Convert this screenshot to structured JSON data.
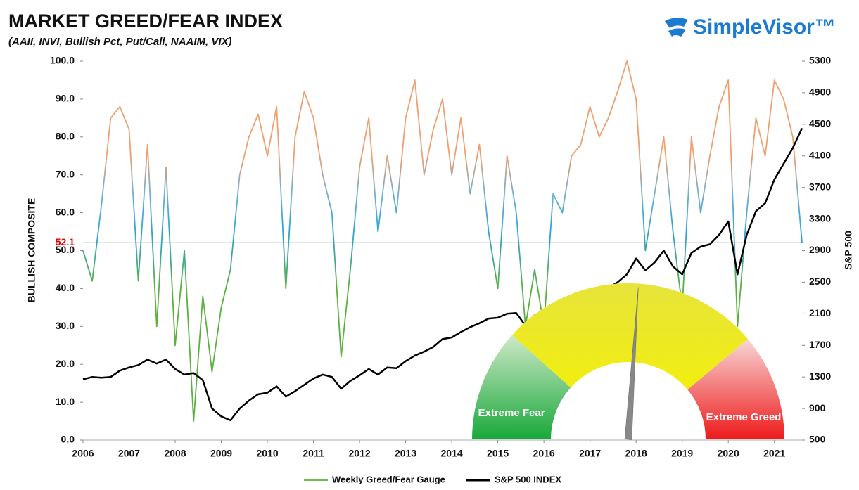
{
  "chart_data": {
    "type": "line",
    "title": "MARKET GREED/FEAR INDEX",
    "subtitle": "(AAII, INVI, Bullish Pct, Put/Call, NAAIM, VIX)",
    "brand": "SimpleVisor™",
    "ylabel": "BULLISH COMPOSITE",
    "y2label": "S&P 500",
    "x": [
      2006.0,
      2006.2,
      2006.4,
      2006.6,
      2006.8,
      2007.0,
      2007.2,
      2007.4,
      2007.6,
      2007.8,
      2008.0,
      2008.2,
      2008.4,
      2008.6,
      2008.8,
      2009.0,
      2009.2,
      2009.4,
      2009.6,
      2009.8,
      2010.0,
      2010.2,
      2010.4,
      2010.6,
      2010.8,
      2011.0,
      2011.2,
      2011.4,
      2011.6,
      2011.8,
      2012.0,
      2012.2,
      2012.4,
      2012.6,
      2012.8,
      2013.0,
      2013.2,
      2013.4,
      2013.6,
      2013.8,
      2014.0,
      2014.2,
      2014.4,
      2014.6,
      2014.8,
      2015.0,
      2015.2,
      2015.4,
      2015.6,
      2015.8,
      2016.0,
      2016.2,
      2016.4,
      2016.6,
      2016.8,
      2017.0,
      2017.2,
      2017.4,
      2017.6,
      2017.8,
      2018.0,
      2018.2,
      2018.4,
      2018.6,
      2018.8,
      2019.0,
      2019.2,
      2019.4,
      2019.6,
      2019.8,
      2020.0,
      2020.2,
      2020.4,
      2020.6,
      2020.8,
      2021.0,
      2021.2,
      2021.4,
      2021.6
    ],
    "series": [
      {
        "name": "Weekly Greed/Fear Gauge",
        "color": "#6abf4b",
        "axis": "y",
        "color_scale": [
          {
            "value": 40,
            "color": "#5cb040"
          },
          {
            "value": 55,
            "color": "#2ea3d6"
          },
          {
            "value": 65,
            "color": "#6fb1d0"
          },
          {
            "value": 75,
            "color": "#f0a070"
          }
        ],
        "values": [
          50,
          42,
          62,
          85,
          88,
          82,
          42,
          78,
          30,
          72,
          25,
          50,
          5,
          38,
          18,
          35,
          45,
          70,
          80,
          86,
          75,
          88,
          40,
          80,
          92,
          85,
          70,
          60,
          22,
          45,
          72,
          85,
          55,
          75,
          60,
          85,
          95,
          70,
          82,
          90,
          70,
          85,
          65,
          78,
          55,
          40,
          75,
          60,
          30,
          45,
          30,
          65,
          60,
          75,
          78,
          88,
          80,
          85,
          92,
          100,
          90,
          50,
          65,
          80,
          55,
          35,
          80,
          60,
          75,
          88,
          95,
          30,
          60,
          85,
          75,
          95,
          90,
          80,
          52.1
        ]
      },
      {
        "name": "S&P 500 INDEX",
        "color": "#000000",
        "axis": "y2",
        "values": [
          1270,
          1300,
          1290,
          1300,
          1380,
          1420,
          1450,
          1520,
          1470,
          1520,
          1400,
          1330,
          1350,
          1260,
          900,
          800,
          750,
          900,
          1000,
          1080,
          1100,
          1180,
          1050,
          1120,
          1200,
          1280,
          1330,
          1300,
          1150,
          1250,
          1320,
          1400,
          1330,
          1420,
          1410,
          1500,
          1570,
          1620,
          1680,
          1780,
          1800,
          1870,
          1930,
          1980,
          2040,
          2050,
          2100,
          2110,
          1950,
          2080,
          1900,
          2060,
          2100,
          2170,
          2150,
          2280,
          2360,
          2430,
          2500,
          2600,
          2800,
          2650,
          2750,
          2900,
          2700,
          2600,
          2870,
          2950,
          2980,
          3100,
          3270,
          2600,
          3100,
          3400,
          3500,
          3800,
          4000,
          4200,
          4450
        ]
      }
    ],
    "current_value": 52.1,
    "current_color": "#e00000",
    "gauge_labels": [
      "Extreme Fear",
      "Extreme Greed"
    ],
    "xlim": [
      2006,
      2021.6
    ],
    "xticks": [
      2006,
      2007,
      2008,
      2009,
      2010,
      2011,
      2012,
      2013,
      2014,
      2015,
      2016,
      2017,
      2018,
      2019,
      2020,
      2021
    ],
    "ylim": [
      0,
      100
    ],
    "yticks": [
      {
        "value": 0,
        "label": "0.0"
      },
      {
        "value": 10,
        "label": "10.0"
      },
      {
        "value": 20,
        "label": "20.0"
      },
      {
        "value": 30,
        "label": "30.0"
      },
      {
        "value": 40,
        "label": "40.0"
      },
      {
        "value": 50,
        "label": "50.0"
      },
      {
        "value": 60,
        "label": "60.0"
      },
      {
        "value": 70,
        "label": "70.0"
      },
      {
        "value": 80,
        "label": "80.0"
      },
      {
        "value": 90,
        "label": "90.0"
      },
      {
        "value": 100,
        "label": "100.0"
      }
    ],
    "y2lim": [
      500,
      5300
    ],
    "y2ticks": [
      500,
      900,
      1300,
      1700,
      2100,
      2500,
      2900,
      3300,
      3700,
      4100,
      4500,
      4900,
      5300
    ],
    "legend": "bottom"
  }
}
